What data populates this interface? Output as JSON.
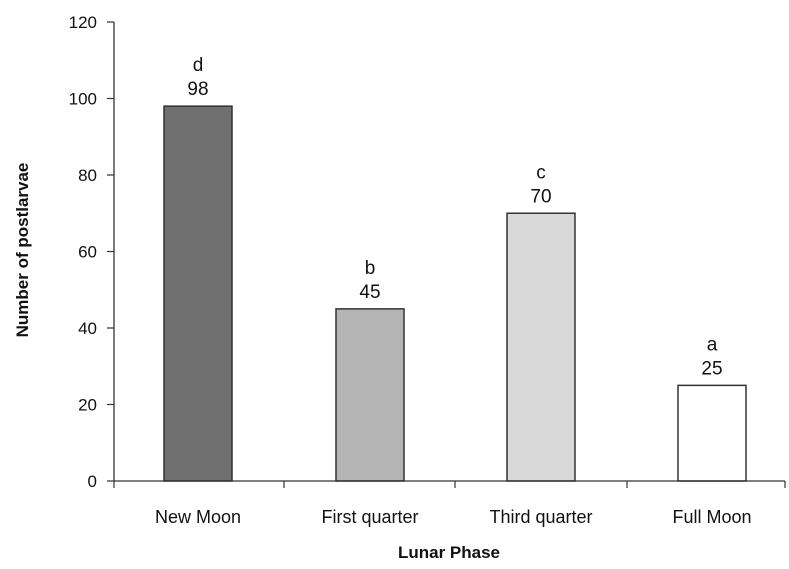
{
  "chart_data": {
    "type": "bar",
    "title": "",
    "xlabel": "Lunar Phase",
    "ylabel": "Number of postlarvae",
    "ylim": [
      0,
      120
    ],
    "yticks": [
      0,
      20,
      40,
      60,
      80,
      100,
      120
    ],
    "categories": [
      "New Moon",
      "First quarter",
      "Third quarter",
      "Full Moon"
    ],
    "values": [
      98,
      45,
      70,
      25
    ],
    "significance_letters": [
      "d",
      "b",
      "c",
      "a"
    ],
    "bar_colors": [
      "#707070",
      "#b4b4b4",
      "#d9d9d9",
      "#ffffff"
    ],
    "bar_outline": "#333333",
    "grid": false,
    "legend": "none"
  }
}
